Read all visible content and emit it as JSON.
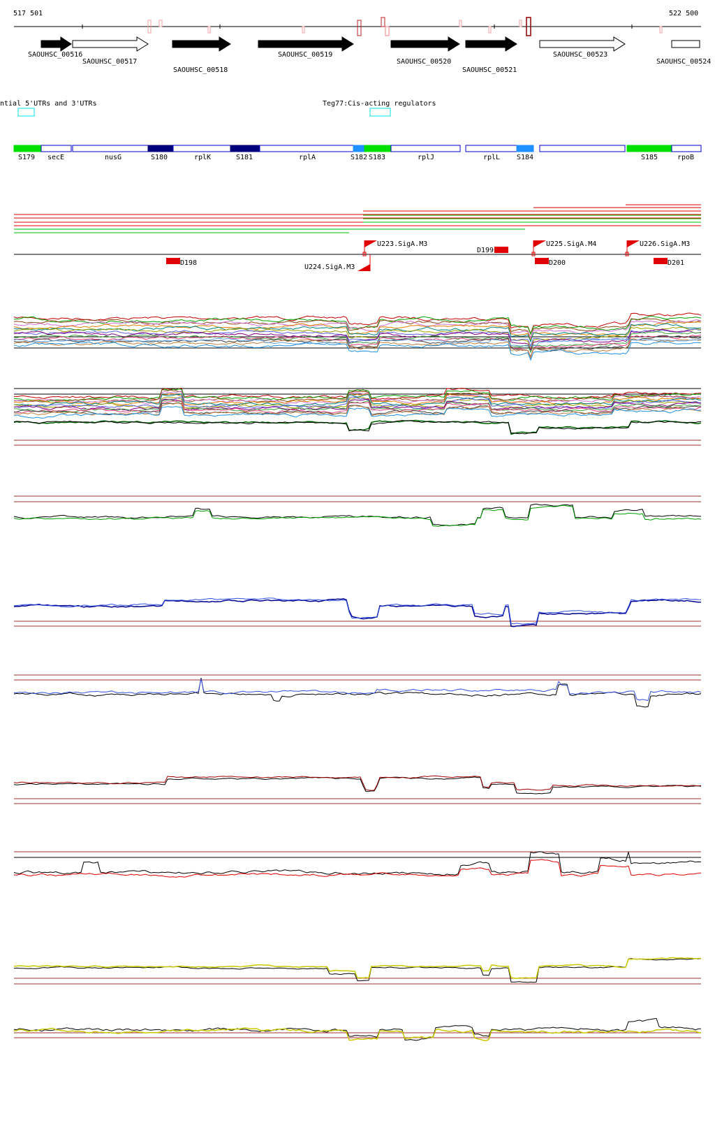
{
  "coords": {
    "start": "517 501",
    "end": "522 500"
  },
  "genes": [
    {
      "id": "SAOUHSC_00516",
      "strand": "+",
      "filled": true
    },
    {
      "id": "SAOUHSC_00517",
      "strand": "+",
      "filled": false
    },
    {
      "id": "SAOUHSC_00518",
      "strand": "+",
      "filled": true
    },
    {
      "id": "SAOUHSC_00519",
      "strand": "+",
      "filled": true
    },
    {
      "id": "SAOUHSC_00520",
      "strand": "+",
      "filled": true
    },
    {
      "id": "SAOUHSC_00521",
      "strand": "+",
      "filled": true
    },
    {
      "id": "SAOUHSC_00523",
      "strand": "+",
      "filled": false
    },
    {
      "id": "SAOUHSC_00524",
      "strand": "+",
      "filled": false
    }
  ],
  "utr_tracks": [
    {
      "label": "ntial 5'UTRs and 3'UTRs"
    },
    {
      "label": "Teg77:Cis-acting regulators"
    }
  ],
  "segments": [
    {
      "label": "S179",
      "color": "#00e000",
      "kind": "filled"
    },
    {
      "label": "secE",
      "color": "#0000c8",
      "kind": "outline"
    },
    {
      "label": "nusG",
      "color": "#0000c8",
      "kind": "outline"
    },
    {
      "label": "S180",
      "color": "#00007a",
      "kind": "filled"
    },
    {
      "label": "rplK",
      "color": "#0000c8",
      "kind": "outline"
    },
    {
      "label": "S181",
      "color": "#00007a",
      "kind": "filled"
    },
    {
      "label": "rplA",
      "color": "#0000c8",
      "kind": "outline"
    },
    {
      "label": "S182",
      "color": "#1e90ff",
      "kind": "filled"
    },
    {
      "label": "S183",
      "color": "#00e000",
      "kind": "filled"
    },
    {
      "label": "rplJ",
      "color": "#0000c8",
      "kind": "outline"
    },
    {
      "label": "rplL",
      "color": "#0000c8",
      "kind": "outline"
    },
    {
      "label": "S184",
      "color": "#1e90ff",
      "kind": "filled"
    },
    {
      "label": "",
      "color": "#0000c8",
      "kind": "outline"
    },
    {
      "label": "S185",
      "color": "#00e000",
      "kind": "filled"
    },
    {
      "label": "rpoB",
      "color": "#0000c8",
      "kind": "outline"
    }
  ],
  "promoters": [
    {
      "label": "U223.SigA.M3",
      "strand": "+"
    },
    {
      "label": "U224.SigA.M3",
      "strand": "-"
    },
    {
      "label": "U225.SigA.M4",
      "strand": "+"
    },
    {
      "label": "U226.SigA.M3",
      "strand": "+"
    }
  ],
  "terminators": [
    {
      "label": "D198"
    },
    {
      "label": "D199"
    },
    {
      "label": "D200"
    },
    {
      "label": "D201"
    }
  ],
  "colors": {
    "red": "#e00000",
    "green": "#00c000",
    "darkgreen": "#006400",
    "navy": "#000090",
    "blue": "#3050e0",
    "darkred": "#a00000",
    "yellow": "#e0e000",
    "ref_line": "#a03030"
  }
}
